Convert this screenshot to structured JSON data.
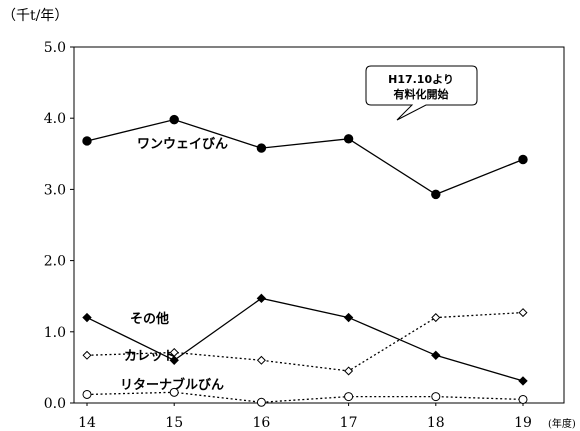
{
  "chart_data": {
    "type": "line",
    "y_unit": "（千t/年）",
    "x_unit": "(年度)",
    "x": [
      "14",
      "15",
      "16",
      "17",
      "18",
      "19"
    ],
    "y_ticks": [
      "0.0",
      "1.0",
      "2.0",
      "3.0",
      "4.0",
      "5.0"
    ],
    "ylim": [
      0,
      5
    ],
    "grid": false,
    "series": [
      {
        "name": "ワンウェイびん",
        "values": [
          3.68,
          3.98,
          3.58,
          3.71,
          2.93,
          3.42
        ],
        "line_style": "solid",
        "marker": "filled-circle",
        "color": "#000000"
      },
      {
        "name": "その他",
        "values": [
          1.2,
          0.6,
          1.47,
          1.2,
          0.67,
          0.31
        ],
        "line_style": "solid",
        "marker": "filled-diamond",
        "color": "#000000"
      },
      {
        "name": "カレット",
        "values": [
          0.67,
          0.71,
          0.6,
          0.45,
          1.2,
          1.27
        ],
        "line_style": "dotted",
        "marker": "open-diamond",
        "color": "#000000"
      },
      {
        "name": "リターナブルびん",
        "values": [
          0.12,
          0.15,
          0.01,
          0.09,
          0.09,
          0.05
        ],
        "line_style": "dotted",
        "marker": "open-circle",
        "color": "#000000"
      }
    ],
    "annotation": {
      "line1": "H17.10より",
      "line2": "有料化開始"
    }
  }
}
